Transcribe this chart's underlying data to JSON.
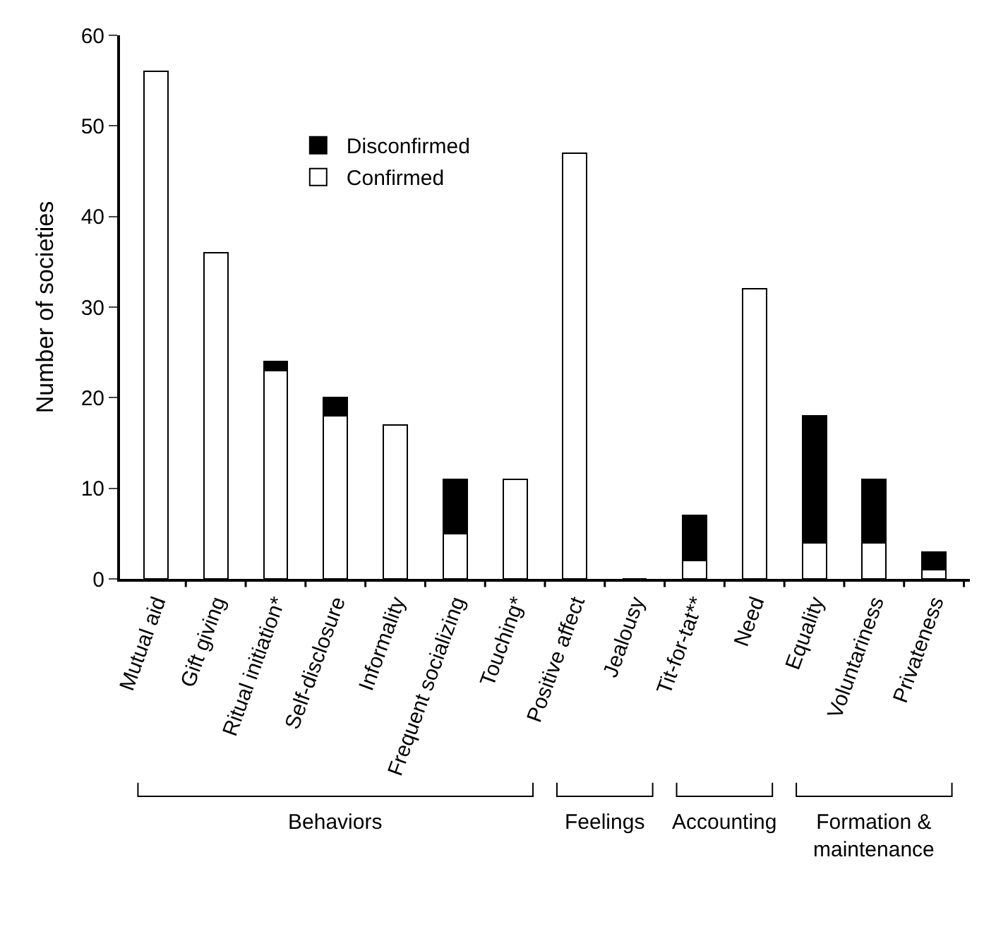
{
  "chart_data": {
    "type": "bar",
    "stacked": true,
    "ylabel": "Number of societies",
    "categories": [
      "Mutual aid",
      "Gift giving",
      "Ritual initiation*",
      "Self-disclosure",
      "Informality",
      "Frequent socializing",
      "Touching*",
      "Positive affect",
      "Jealousy",
      "Tit-for-tat**",
      "Need",
      "Equality",
      "Voluntariness",
      "Privateness"
    ],
    "series": [
      {
        "name": "Confirmed",
        "color": "#ffffff",
        "values": [
          56,
          36,
          23,
          18,
          17,
          5,
          11,
          47,
          0,
          2,
          32,
          4,
          4,
          1
        ]
      },
      {
        "name": "Disconfirmed",
        "color": "#000000",
        "values": [
          0,
          0,
          1,
          2,
          0,
          6,
          0,
          0,
          0,
          5,
          0,
          14,
          7,
          2
        ]
      }
    ],
    "ylim": [
      0,
      60
    ],
    "yticks": [
      0,
      10,
      20,
      30,
      40,
      50,
      60
    ],
    "grid": false,
    "legend": "top left",
    "annotations": [
      "Behaviors",
      "Feelings",
      "Accounting",
      "Formation &\nmaintenance"
    ]
  }
}
